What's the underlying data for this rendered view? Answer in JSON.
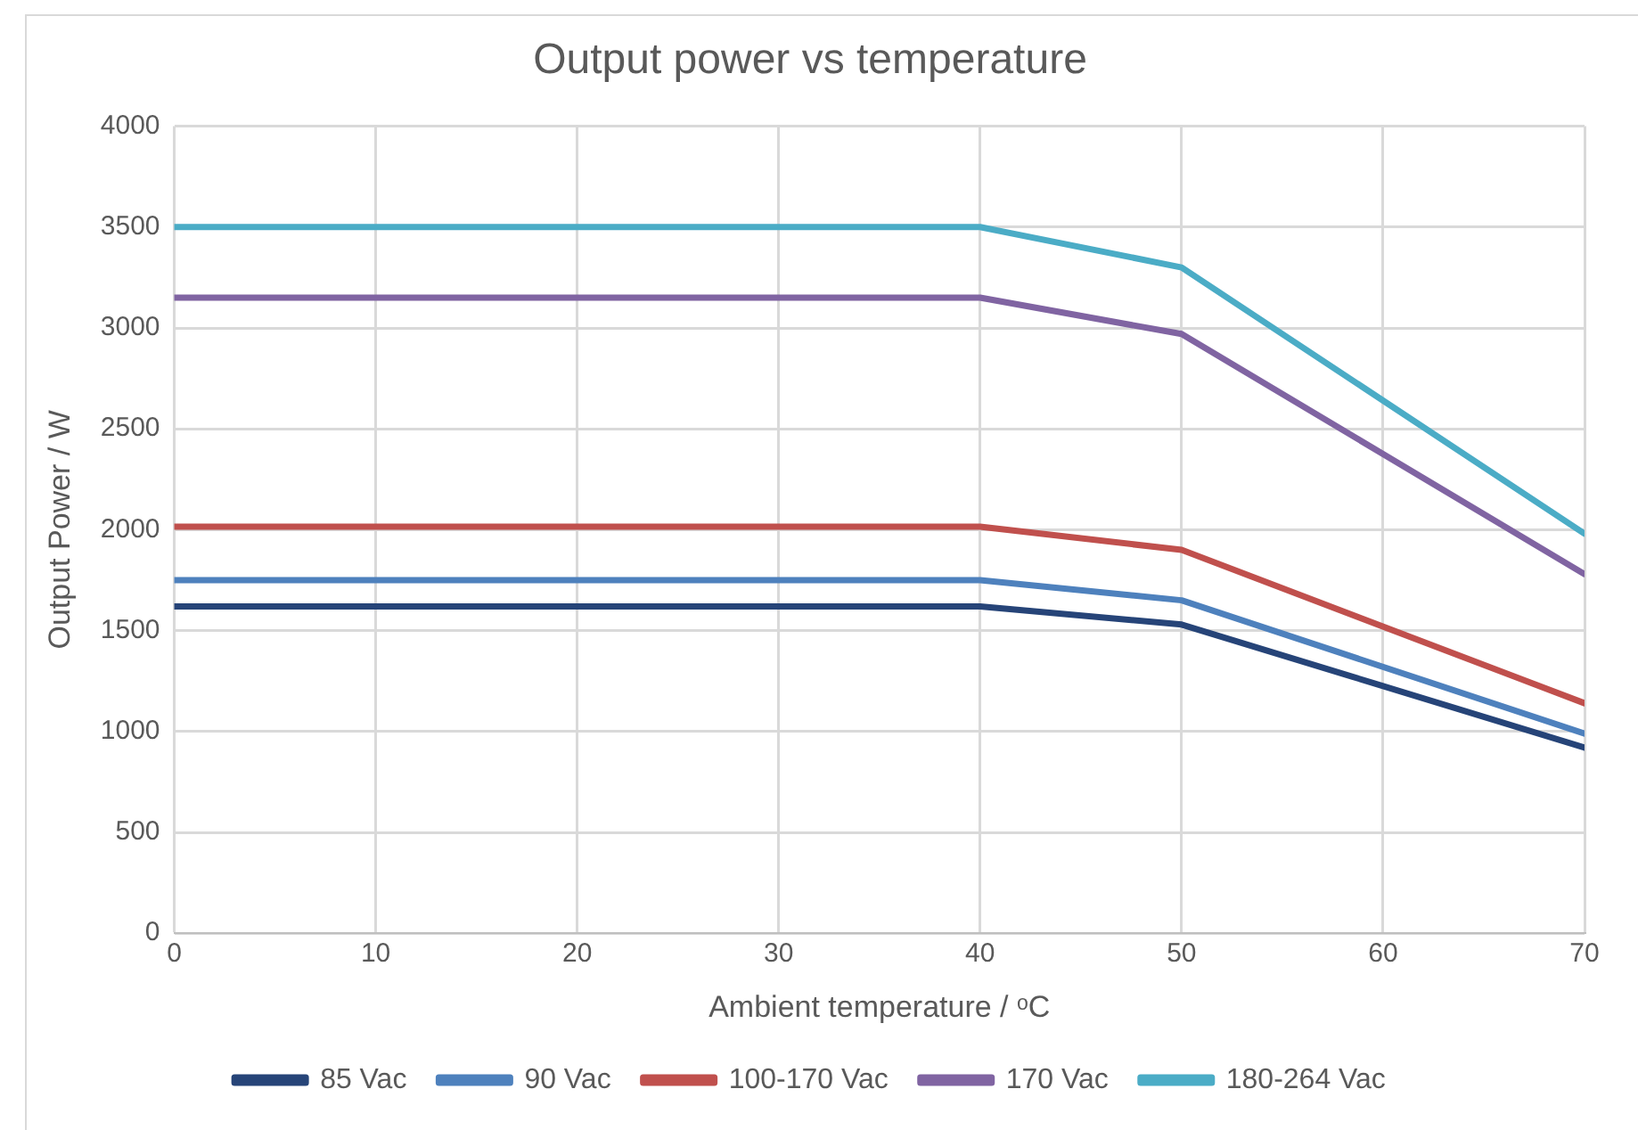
{
  "chart_data": {
    "type": "line",
    "title": "Output power vs temperature",
    "xlabel": "Ambient temperature / ᵒC",
    "ylabel": "Output Power / W",
    "x": [
      0,
      40,
      50,
      70
    ],
    "xlim": [
      0,
      70
    ],
    "xticks": [
      0,
      10,
      20,
      30,
      40,
      50,
      60,
      70
    ],
    "ylim": [
      0,
      4000
    ],
    "yticks": [
      0,
      500,
      1000,
      1500,
      2000,
      2500,
      3000,
      3500,
      4000
    ],
    "grid": true,
    "legend": "bottom",
    "marker": "none",
    "line_style": "solid",
    "series": [
      {
        "name": "85 Vac",
        "color": "#264478",
        "values": [
          1620,
          1620,
          1530,
          920
        ]
      },
      {
        "name": "90 Vac",
        "color": "#4e81bd",
        "values": [
          1750,
          1750,
          1650,
          990
        ]
      },
      {
        "name": "100-170 Vac",
        "color": "#c0504d",
        "values": [
          2015,
          2015,
          1900,
          1140
        ]
      },
      {
        "name": "170 Vac",
        "color": "#8064a2",
        "values": [
          3150,
          3150,
          2970,
          1780
        ]
      },
      {
        "name": "180-264 Vac",
        "color": "#4bacc6",
        "values": [
          3500,
          3500,
          3300,
          1980
        ]
      }
    ]
  }
}
